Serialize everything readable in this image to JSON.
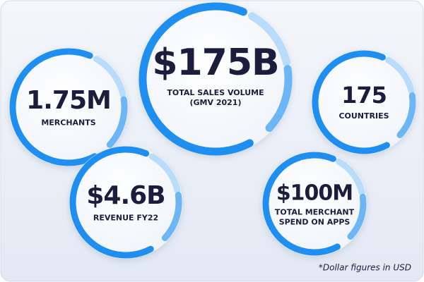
{
  "stats": [
    {
      "value": "1.75M",
      "label": [
        "MERCHANTS"
      ]
    },
    {
      "value": "$175B",
      "label": [
        "TOTAL SALES VOLUME",
        "(GMV 2021)"
      ]
    },
    {
      "value": "175",
      "label": [
        "COUNTRIES"
      ]
    },
    {
      "value": "$4.6B",
      "label": [
        "REVENUE FY22"
      ]
    },
    {
      "value": "$100M",
      "label": [
        "TOTAL MERCHANT",
        "SPEND ON APPS"
      ]
    }
  ],
  "footnote": "*Dollar figures in USD"
}
